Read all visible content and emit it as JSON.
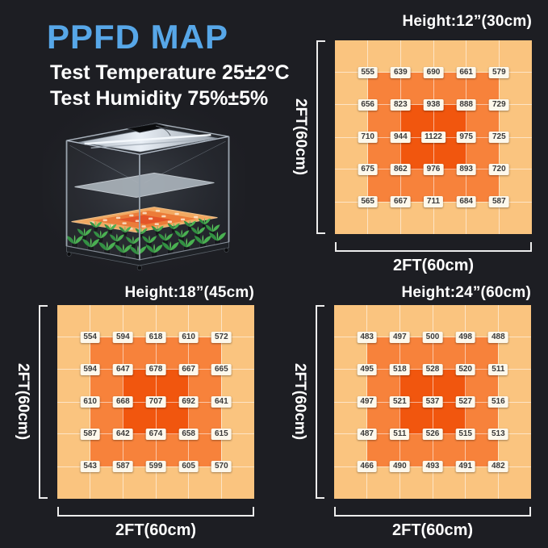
{
  "header": {
    "title": "PPFD MAP",
    "title_color": "#57a7e8",
    "condition1": "Test Temperature 25±2°C",
    "condition2": "Test Humidity 75%±5%"
  },
  "heatmap_palette": {
    "outer": "#fac47f",
    "mid": "#f7823b",
    "center": "#f1560e",
    "gridline": "rgba(255,255,255,0.55)",
    "chip_bg": "#fdf8ec",
    "chip_text": "#3a3a3a"
  },
  "chart_data": [
    {
      "type": "heatmap",
      "title": "Height:12”(30cm)",
      "xlabel": "2FT(60cm)",
      "ylabel": "2FT(60cm)",
      "grid": [
        6,
        6
      ],
      "legend_position": "none",
      "values": [
        [
          555,
          639,
          690,
          661,
          579
        ],
        [
          656,
          823,
          938,
          888,
          729
        ],
        [
          710,
          944,
          1122,
          975,
          725
        ],
        [
          675,
          862,
          976,
          893,
          720
        ],
        [
          565,
          667,
          711,
          684,
          587
        ]
      ]
    },
    {
      "type": "heatmap",
      "title": "Height:18”(45cm)",
      "xlabel": "2FT(60cm)",
      "ylabel": "2FT(60cm)",
      "grid": [
        6,
        6
      ],
      "legend_position": "none",
      "values": [
        [
          554,
          594,
          618,
          610,
          572
        ],
        [
          594,
          647,
          678,
          667,
          665
        ],
        [
          610,
          668,
          707,
          692,
          641
        ],
        [
          587,
          642,
          674,
          658,
          615
        ],
        [
          543,
          587,
          599,
          605,
          570
        ]
      ]
    },
    {
      "type": "heatmap",
      "title": "Height:24”(60cm)",
      "xlabel": "2FT(60cm)",
      "ylabel": "2FT(60cm)",
      "grid": [
        6,
        6
      ],
      "legend_position": "none",
      "values": [
        [
          483,
          497,
          500,
          498,
          488
        ],
        [
          495,
          518,
          528,
          520,
          511
        ],
        [
          497,
          521,
          537,
          527,
          516
        ],
        [
          487,
          511,
          526,
          515,
          513
        ],
        [
          466,
          490,
          493,
          491,
          482
        ]
      ]
    }
  ]
}
